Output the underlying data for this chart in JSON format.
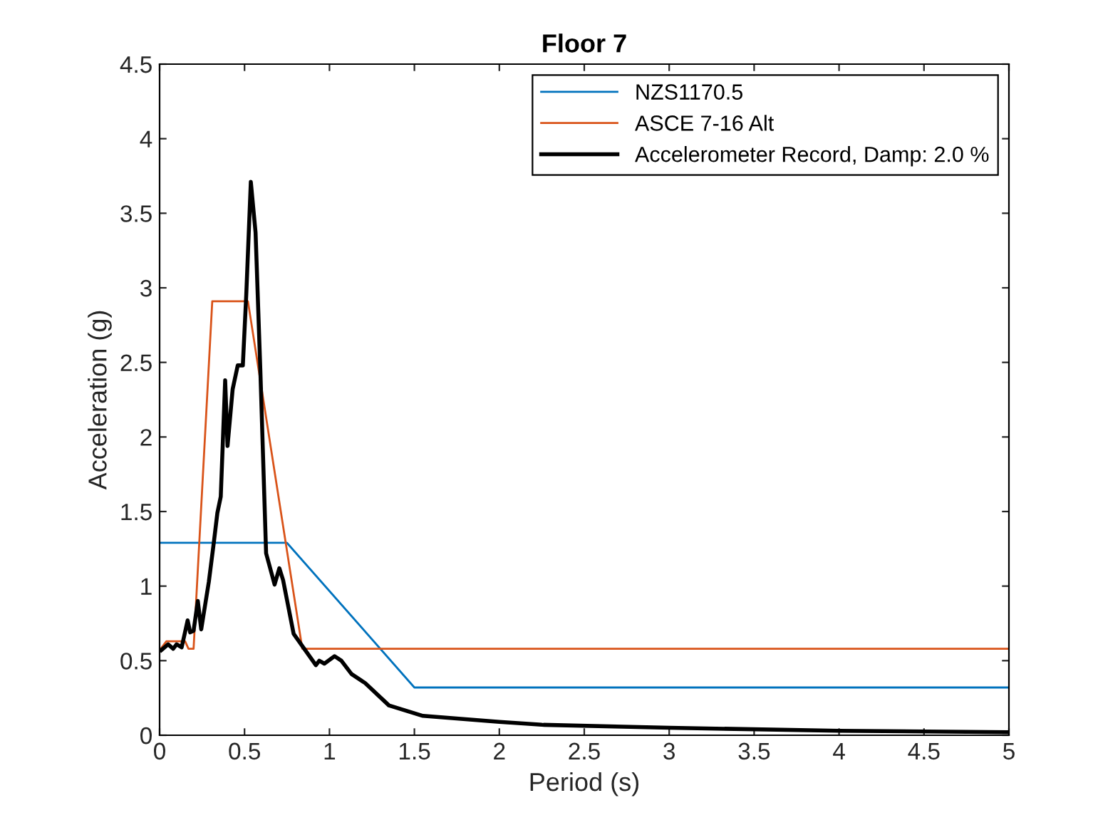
{
  "chart_data": {
    "type": "line",
    "title": "Floor 7",
    "xlabel": "Period (s)",
    "ylabel": "Acceleration (g)",
    "xlim": [
      0,
      5
    ],
    "ylim": [
      0,
      4.5
    ],
    "xticks": [
      0,
      0.5,
      1,
      1.5,
      2,
      2.5,
      3,
      3.5,
      4,
      4.5,
      5
    ],
    "yticks": [
      0,
      0.5,
      1,
      1.5,
      2,
      2.5,
      3,
      3.5,
      4,
      4.5
    ],
    "grid": false,
    "legend": "top right",
    "marker": "none",
    "line_style": "solid",
    "series": [
      {
        "name": "NZS1170.5",
        "color": "#0072bd",
        "x": [
          0,
          0.75,
          1.5,
          5
        ],
        "values": [
          1.29,
          1.29,
          0.32,
          0.32
        ]
      },
      {
        "name": "ASCE 7-16 Alt",
        "color": "#d95319",
        "x": [
          0,
          0.04,
          0.15,
          0.17,
          0.2,
          0.31,
          0.52,
          0.84,
          5
        ],
        "values": [
          0.57,
          0.63,
          0.63,
          0.58,
          0.58,
          2.91,
          2.91,
          0.58,
          0.58
        ]
      },
      {
        "name": "Accelerometer Record, Damp: 2.0 %",
        "color": "#000000",
        "x": [
          0.01,
          0.05,
          0.08,
          0.1,
          0.13,
          0.165,
          0.18,
          0.2,
          0.225,
          0.245,
          0.29,
          0.32,
          0.34,
          0.36,
          0.386,
          0.4,
          0.43,
          0.46,
          0.49,
          0.51,
          0.537,
          0.565,
          0.593,
          0.627,
          0.677,
          0.705,
          0.727,
          0.789,
          0.92,
          0.94,
          0.97,
          1.03,
          1.07,
          1.13,
          1.21,
          1.35,
          1.55,
          2.0,
          2.25,
          3.0,
          4.0,
          5.0
        ],
        "values": [
          0.57,
          0.61,
          0.58,
          0.61,
          0.59,
          0.77,
          0.69,
          0.7,
          0.9,
          0.71,
          1.03,
          1.3,
          1.49,
          1.6,
          2.38,
          1.94,
          2.32,
          2.48,
          2.48,
          2.95,
          3.71,
          3.37,
          2.45,
          1.22,
          1.01,
          1.12,
          1.04,
          0.68,
          0.47,
          0.5,
          0.48,
          0.53,
          0.5,
          0.41,
          0.35,
          0.2,
          0.13,
          0.09,
          0.07,
          0.05,
          0.03,
          0.02
        ]
      }
    ]
  }
}
